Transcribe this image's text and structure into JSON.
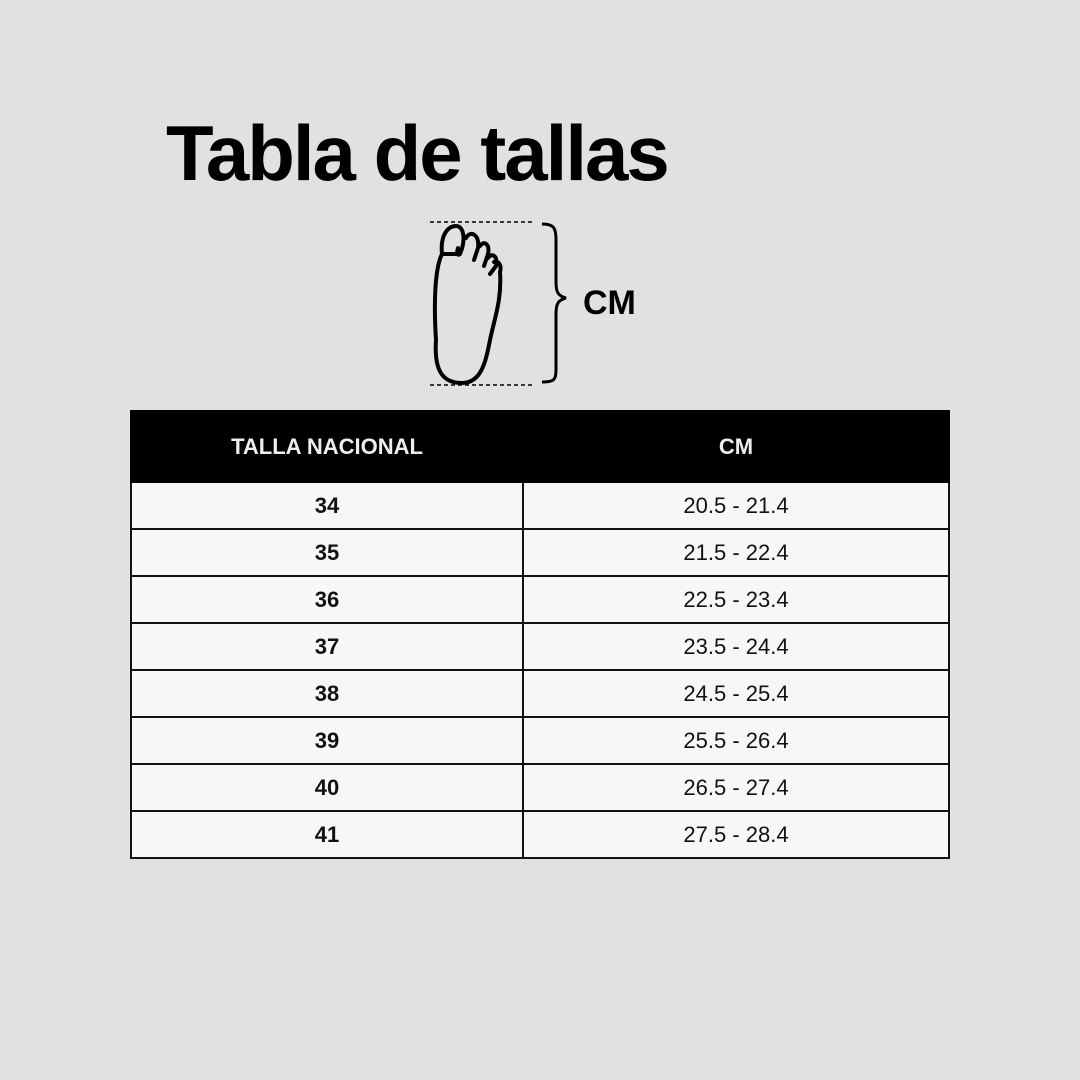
{
  "title": "Tabla de tallas",
  "diagram": {
    "icon": "foot-outline-icon",
    "measure_label": "CM"
  },
  "table": {
    "headers": [
      "TALLA NACIONAL",
      "CM"
    ],
    "rows": [
      {
        "size": "34",
        "cm": "20.5 - 21.4"
      },
      {
        "size": "35",
        "cm": "21.5 - 22.4"
      },
      {
        "size": "36",
        "cm": "22.5 - 23.4"
      },
      {
        "size": "37",
        "cm": "23.5 - 24.4"
      },
      {
        "size": "38",
        "cm": "24.5 - 25.4"
      },
      {
        "size": "39",
        "cm": "25.5 - 26.4"
      },
      {
        "size": "40",
        "cm": "26.5 - 27.4"
      },
      {
        "size": "41",
        "cm": "27.5 - 28.4"
      }
    ]
  },
  "colors": {
    "background": "#e1e1e1",
    "header": "#000000",
    "cell": "#f8f7f7"
  }
}
